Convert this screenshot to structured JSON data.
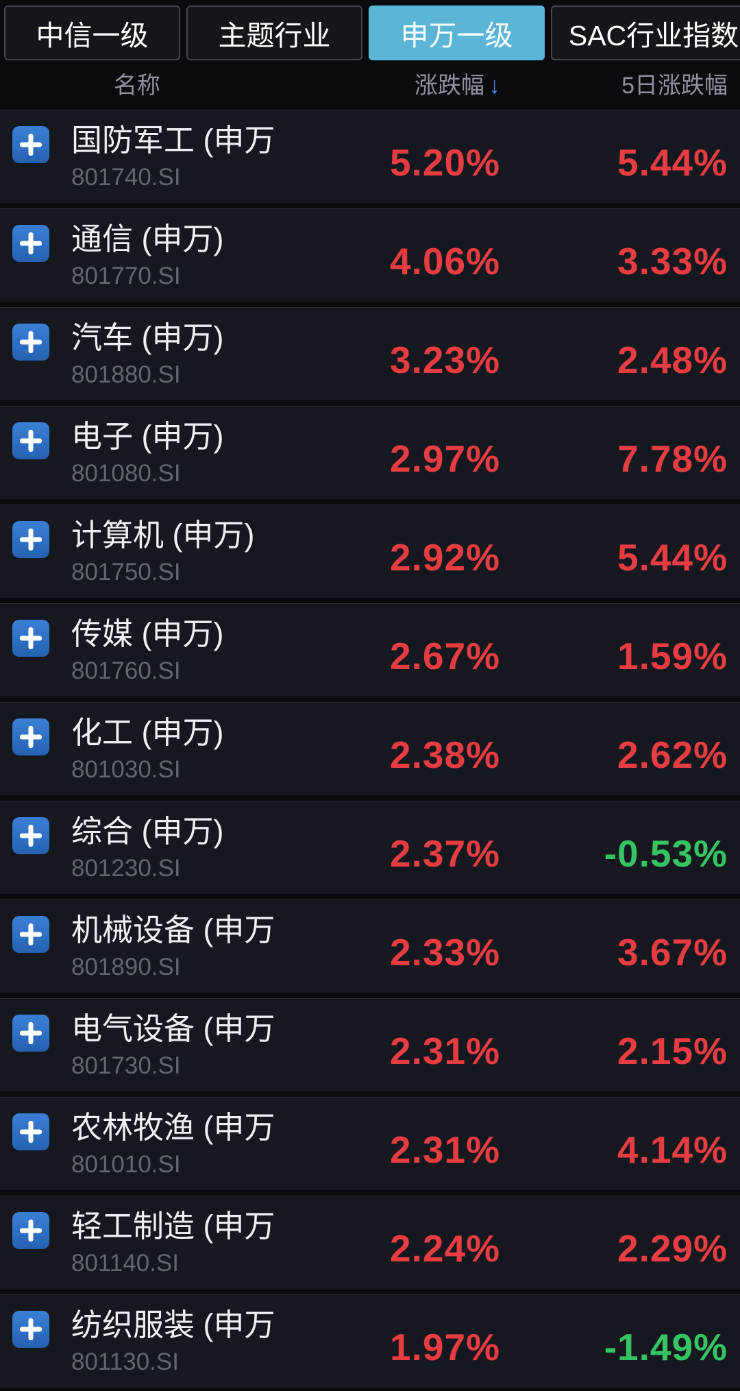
{
  "tabs": [
    {
      "label": "中信一级",
      "active": false
    },
    {
      "label": "主题行业",
      "active": false
    },
    {
      "label": "申万一级",
      "active": true
    },
    {
      "label": "SAC行业指数",
      "active": false
    }
  ],
  "table": {
    "columns": {
      "name": "名称",
      "change": "涨跌幅",
      "sort_arrow": "↓",
      "change_5d": "5日涨跌幅"
    },
    "rows": [
      {
        "name": "国防军工 (申万)",
        "code": "801740.SI",
        "change": "5.20%",
        "change_5d": "5.44%"
      },
      {
        "name": "通信 (申万)",
        "code": "801770.SI",
        "change": "4.06%",
        "change_5d": "3.33%"
      },
      {
        "name": "汽车 (申万)",
        "code": "801880.SI",
        "change": "3.23%",
        "change_5d": "2.48%"
      },
      {
        "name": "电子 (申万)",
        "code": "801080.SI",
        "change": "2.97%",
        "change_5d": "7.78%"
      },
      {
        "name": "计算机 (申万)",
        "code": "801750.SI",
        "change": "2.92%",
        "change_5d": "5.44%"
      },
      {
        "name": "传媒 (申万)",
        "code": "801760.SI",
        "change": "2.67%",
        "change_5d": "1.59%"
      },
      {
        "name": "化工 (申万)",
        "code": "801030.SI",
        "change": "2.38%",
        "change_5d": "2.62%"
      },
      {
        "name": "综合 (申万)",
        "code": "801230.SI",
        "change": "2.37%",
        "change_5d": "-0.53%"
      },
      {
        "name": "机械设备 (申万)",
        "code": "801890.SI",
        "change": "2.33%",
        "change_5d": "3.67%"
      },
      {
        "name": "电气设备 (申万)",
        "code": "801730.SI",
        "change": "2.31%",
        "change_5d": "2.15%"
      },
      {
        "name": "农林牧渔 (申万)",
        "code": "801010.SI",
        "change": "2.31%",
        "change_5d": "4.14%"
      },
      {
        "name": "轻工制造 (申万)",
        "code": "801140.SI",
        "change": "2.24%",
        "change_5d": "2.29%"
      },
      {
        "name": "纺织服装 (申万)",
        "code": "801130.SI",
        "change": "1.97%",
        "change_5d": "-1.49%"
      }
    ]
  },
  "colors": {
    "up_red": "#e63c42",
    "down_green": "#35c463",
    "active_tab_blue": "#5ab5d7",
    "sort_arrow_blue": "#4a86e8"
  },
  "icons": {
    "add": "plus-icon",
    "sort": "arrow-down-icon"
  }
}
